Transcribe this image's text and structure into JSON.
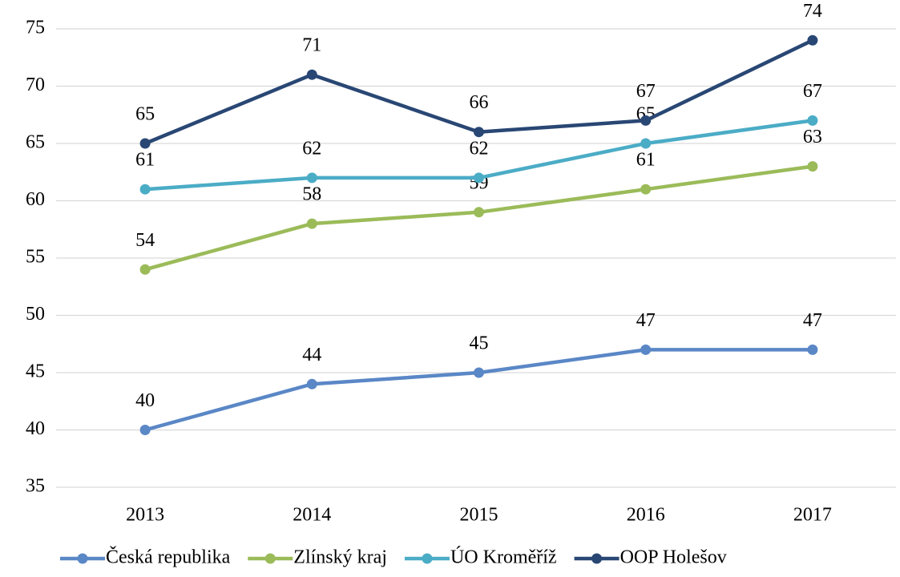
{
  "chart_data": {
    "type": "line",
    "categories": [
      "2013",
      "2014",
      "2015",
      "2016",
      "2017"
    ],
    "series": [
      {
        "name": "Česká republika",
        "color": "#5a87c6",
        "values": [
          40,
          44,
          45,
          47,
          47
        ]
      },
      {
        "name": "Zlínský kraj",
        "color": "#9bbb59",
        "values": [
          54,
          58,
          59,
          61,
          63
        ]
      },
      {
        "name": "ÚO Kroměříž",
        "color": "#4bacc6",
        "values": [
          61,
          62,
          62,
          65,
          67
        ]
      },
      {
        "name": "OOP Holešov",
        "color": "#294774",
        "values": [
          65,
          71,
          66,
          67,
          74
        ]
      }
    ],
    "ylim": [
      35,
      75
    ],
    "yticks": [
      35,
      40,
      45,
      50,
      55,
      60,
      65,
      70,
      75
    ],
    "grid": true,
    "legend": "bottom"
  }
}
